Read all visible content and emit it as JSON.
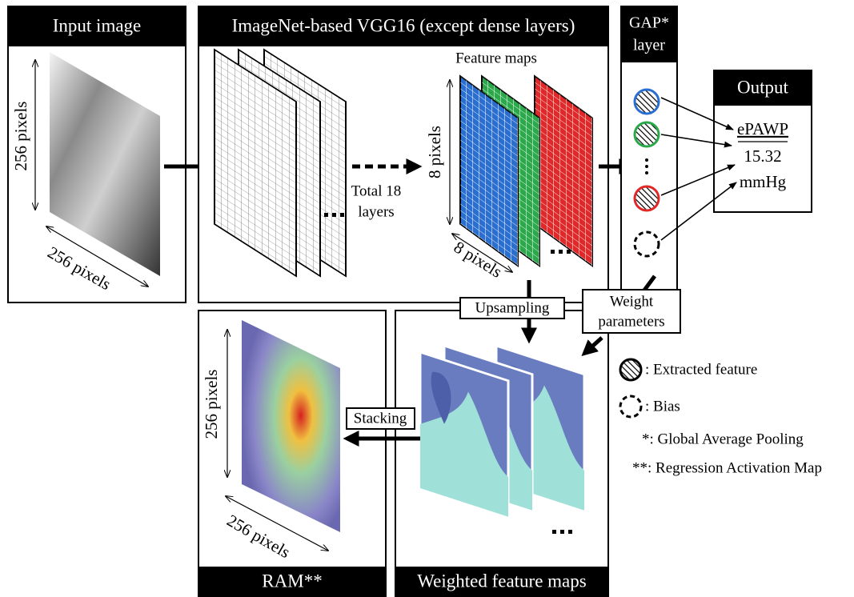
{
  "input": {
    "title": "Input image",
    "height_label": "256 pixels",
    "width_label": "256 pixels"
  },
  "vgg": {
    "title": "ImageNet-based VGG16 (except dense layers)",
    "feature_maps_label": "Feature maps",
    "layers_label": [
      "Total 18",
      "layers"
    ],
    "height_label": "8 pixels",
    "width_label": "8 pixels"
  },
  "gap": {
    "title": [
      "GAP*",
      "layer"
    ]
  },
  "output": {
    "title": "Output",
    "name": "ePAWP",
    "value": "15.32",
    "unit": "mmHg"
  },
  "labels": {
    "upsampling": "Upsampling",
    "weight_parameters": [
      "Weight",
      "parameters"
    ],
    "stacking": "Stacking"
  },
  "ram": {
    "title": "RAM**",
    "height_label": "256 pixels",
    "width_label": "256 pixels"
  },
  "weighted": {
    "title": "Weighted feature maps"
  },
  "legend": [
    ": Extracted feature",
    ": Bias",
    "*: Global Average Pooling",
    "**: Regression Activation Map"
  ]
}
